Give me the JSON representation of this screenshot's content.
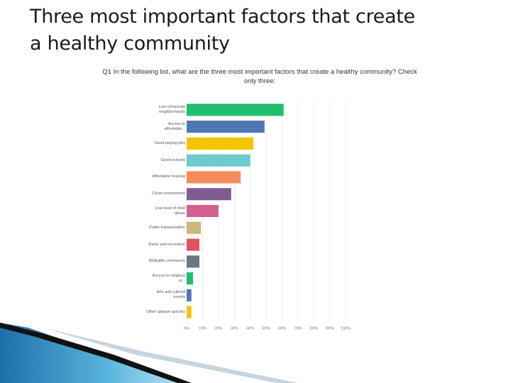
{
  "title": [
    "Three most important factors that create",
    "a healthy community"
  ],
  "chart_data": {
    "type": "bar",
    "orientation": "horizontal",
    "title": "Q1 In the following list, what are the three most important factors that create a healthy community? Check only three:",
    "categories": [
      "Low crime/safe neighborhoods",
      "Access to affordable...",
      "Good paying jobs",
      "Good schools",
      "Affordable housing",
      "Clean environment",
      "Low level of child abuse",
      "Public transportation",
      "Parks and recreation",
      "Walkable community",
      "Access to religious or...",
      "Arts and cultural events",
      "Other (please specify)"
    ],
    "values": [
      61,
      49,
      42,
      40,
      34,
      28,
      20,
      9,
      8,
      8,
      4,
      3,
      3
    ],
    "colors": [
      "#1fbf6e",
      "#4f77b5",
      "#f5c400",
      "#6ccbcf",
      "#f68c5b",
      "#7e5c92",
      "#d4608e",
      "#c8b97a",
      "#e0535e",
      "#6b7682",
      "#1fbf6e",
      "#4f77b5",
      "#f5c400"
    ],
    "xlim": [
      0,
      100
    ],
    "xticks": [
      {
        "value": 0,
        "label": "0%"
      },
      {
        "value": 10,
        "label": "10%"
      },
      {
        "value": 20,
        "label": "20%"
      },
      {
        "value": 30,
        "label": "30%"
      },
      {
        "value": 40,
        "label": "40%"
      },
      {
        "value": 50,
        "label": "50%"
      },
      {
        "value": 60,
        "label": "60%"
      },
      {
        "value": 70,
        "label": "70%"
      },
      {
        "value": 80,
        "label": "80%"
      },
      {
        "value": 90,
        "label": "90%"
      },
      {
        "value": 100,
        "label": "100%"
      }
    ],
    "grid": true
  }
}
